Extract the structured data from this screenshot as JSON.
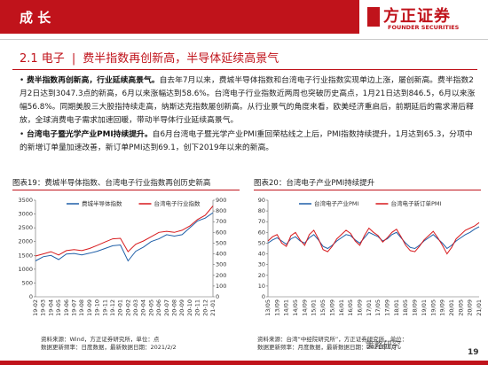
{
  "header": {
    "title": "成 长",
    "logo": "方正证券",
    "logo_en": "FOUNDER SECURITIES"
  },
  "section": {
    "number": "2.1 电子",
    "separator": "|",
    "subtitle": "费半指数再创新高，半导体延续高景气"
  },
  "bullets": [
    {
      "bold": "费半指数再创新高，行业延续高景气。",
      "text": "自去年7月以来，费城半导体指数和台湾电子行业指数实现单边上涨，屡创新高。费半指数2月2日达到3047.3点的新高，6月以来涨幅达到58.6%。台湾电子行业指数近两周也突破历史高点，1月21日达到846.5，6月以来涨幅56.8%。同期美股三大股指持续走高，纳斯达克指数屡创新高。从行业景气的角度来看，欧美经济重启后，前期延后的需求滞后释放，全球消费电子需求加速回暖，带动半导体行业延续高景气。"
    },
    {
      "bold": "台湾电子暨光学产业PMI持续提升。",
      "text": "自6月台湾电子暨光学产业PMI重回荣枯线之上后，PMI指数持续提升，1月达到65.3，分项中的新增订单量加速改善，新订单PMI达到69.1，创下2019年以来的新高。"
    }
  ],
  "chart_data": [
    {
      "type": "line",
      "title": "图表19：费城半导体指数、台湾电子行业指数再创历史新高",
      "categories": [
        "19-02",
        "19-03",
        "19-04",
        "19-05",
        "19-06",
        "19-07",
        "19-08",
        "19-09",
        "19-10",
        "19-11",
        "19-12",
        "20-01",
        "20-02",
        "20-03",
        "20-04",
        "20-05",
        "20-06",
        "20-07",
        "20-08",
        "20-09",
        "20-10",
        "20-11",
        "20-12",
        "21-01"
      ],
      "series": [
        {
          "name": "费城半导体指数",
          "color": "#1f5fa8",
          "values": [
            1300,
            1450,
            1500,
            1350,
            1550,
            1570,
            1520,
            1580,
            1650,
            1750,
            1850,
            1880,
            1300,
            1650,
            1800,
            2000,
            2100,
            2250,
            2200,
            2250,
            2500,
            2750,
            2850,
            3047
          ]
        },
        {
          "name": "台湾电子行业指数",
          "color": "#d7191c",
          "axis": "y2",
          "values": [
            380,
            400,
            420,
            390,
            430,
            440,
            430,
            450,
            480,
            510,
            540,
            545,
            420,
            490,
            520,
            560,
            600,
            610,
            600,
            620,
            660,
            720,
            760,
            846
          ]
        }
      ],
      "ylim": [
        0,
        3500
      ],
      "yticks": [
        0,
        500,
        1000,
        1500,
        2000,
        2500,
        3000,
        3500
      ],
      "y2lim": [
        0,
        900
      ],
      "y2ticks": [
        0,
        100,
        200,
        300,
        400,
        500,
        600,
        700,
        800,
        900
      ],
      "source": "资料来源：Wind，方正证券研究所，单位：点",
      "note": "数据更新频率：日度数据，最新数据日期：2021/2/2"
    },
    {
      "type": "line",
      "title": "图表20：台湾电子产业PMI持续提升",
      "categories": [
        "13/05",
        null,
        "13/09",
        null,
        "14/01",
        null,
        "14/05",
        null,
        "14/09",
        null,
        "15/01",
        null,
        "15/05",
        null,
        "15/09",
        null,
        "16/01",
        null,
        "16/05",
        null,
        "16/09",
        null,
        "17/01",
        null,
        "17/05",
        null,
        "17/09",
        null,
        "18/01",
        null,
        "18/05",
        null,
        "18/09",
        null,
        "19/01",
        null,
        "19/05",
        null,
        "19/09",
        null,
        "20/01",
        null,
        "20/05",
        null,
        "20/09",
        null,
        "21/01"
      ],
      "series": [
        {
          "name": "台湾电子产业PMI",
          "color": "#1f5fa8",
          "values": [
            50,
            53,
            55,
            52,
            49,
            54,
            56,
            52,
            50,
            55,
            58,
            53,
            47,
            45,
            48,
            52,
            55,
            58,
            57,
            53,
            50,
            55,
            60,
            58,
            56,
            52,
            54,
            58,
            60,
            55,
            50,
            46,
            45,
            48,
            52,
            55,
            58,
            54,
            50,
            45,
            48,
            52,
            55,
            58,
            60,
            63,
            65.3
          ]
        },
        {
          "name": "台湾电子新订单PMI",
          "color": "#d7191c",
          "values": [
            52,
            56,
            58,
            50,
            47,
            57,
            60,
            53,
            48,
            58,
            62,
            54,
            44,
            42,
            47,
            54,
            58,
            62,
            59,
            52,
            48,
            57,
            64,
            60,
            57,
            51,
            55,
            60,
            63,
            56,
            48,
            43,
            42,
            47,
            53,
            57,
            61,
            55,
            48,
            40,
            46,
            54,
            58,
            62,
            64,
            66,
            69.1
          ]
        }
      ],
      "ylim": [
        0,
        90
      ],
      "yticks": [
        0,
        10,
        20,
        30,
        40,
        50,
        60,
        70,
        80,
        90
      ],
      "source": "资料来源：台湾“中经院研究所”，方正证券研究所，单位：",
      "note": "数据更新频率：月度数据，最新数据日期：2021年1月"
    }
  ],
  "page_number": "19",
  "watermark": "策略研究"
}
